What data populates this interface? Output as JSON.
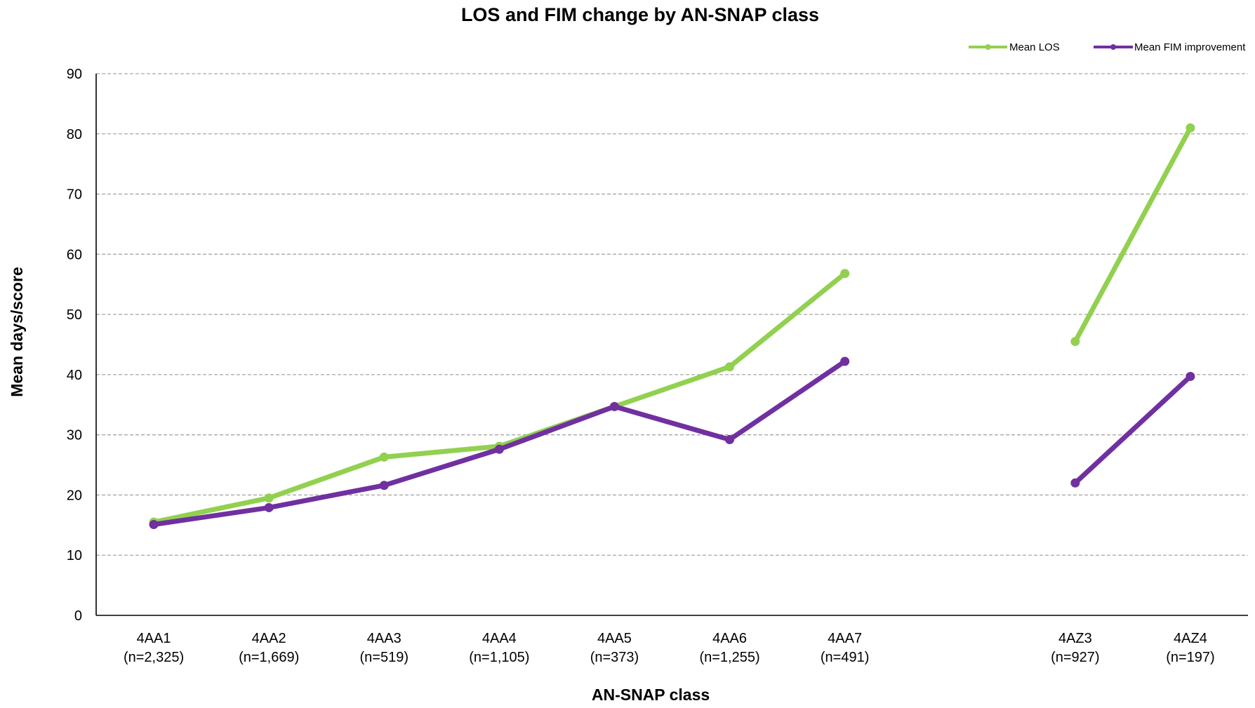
{
  "chart_data": {
    "type": "line",
    "title": "LOS and FIM change by AN-SNAP class",
    "xlabel": "AN-SNAP class",
    "ylabel": "Mean days/score",
    "ylim": [
      0,
      90
    ],
    "y_ticks": [
      0,
      10,
      20,
      30,
      40,
      50,
      60,
      70,
      80,
      90
    ],
    "grid": "horizontal dashed",
    "legend_position": "top-right",
    "categories": [
      {
        "code": "4AA1",
        "n": "(n=2,325)"
      },
      {
        "code": "4AA2",
        "n": "(n=1,669)"
      },
      {
        "code": "4AA3",
        "n": "(n=519)"
      },
      {
        "code": "4AA4",
        "n": "(n=1,105)"
      },
      {
        "code": "4AA5",
        "n": "(n=373)"
      },
      {
        "code": "4AA6",
        "n": "(n=1,255)"
      },
      {
        "code": "4AA7",
        "n": "(n=491)"
      },
      {
        "code": "",
        "n": ""
      },
      {
        "code": "4AZ3",
        "n": "(n=927)"
      },
      {
        "code": "4AZ4",
        "n": "(n=197)"
      }
    ],
    "series": [
      {
        "name": "Mean LOS",
        "color": "#92d050",
        "values": [
          15.5,
          19.5,
          26.3,
          28.1,
          34.7,
          41.3,
          56.8,
          null,
          45.5,
          81.0
        ]
      },
      {
        "name": "Mean FIM improvement",
        "color": "#7030a0",
        "values": [
          15.1,
          17.9,
          21.6,
          27.6,
          34.7,
          29.2,
          42.2,
          null,
          22.0,
          39.7
        ]
      }
    ]
  }
}
